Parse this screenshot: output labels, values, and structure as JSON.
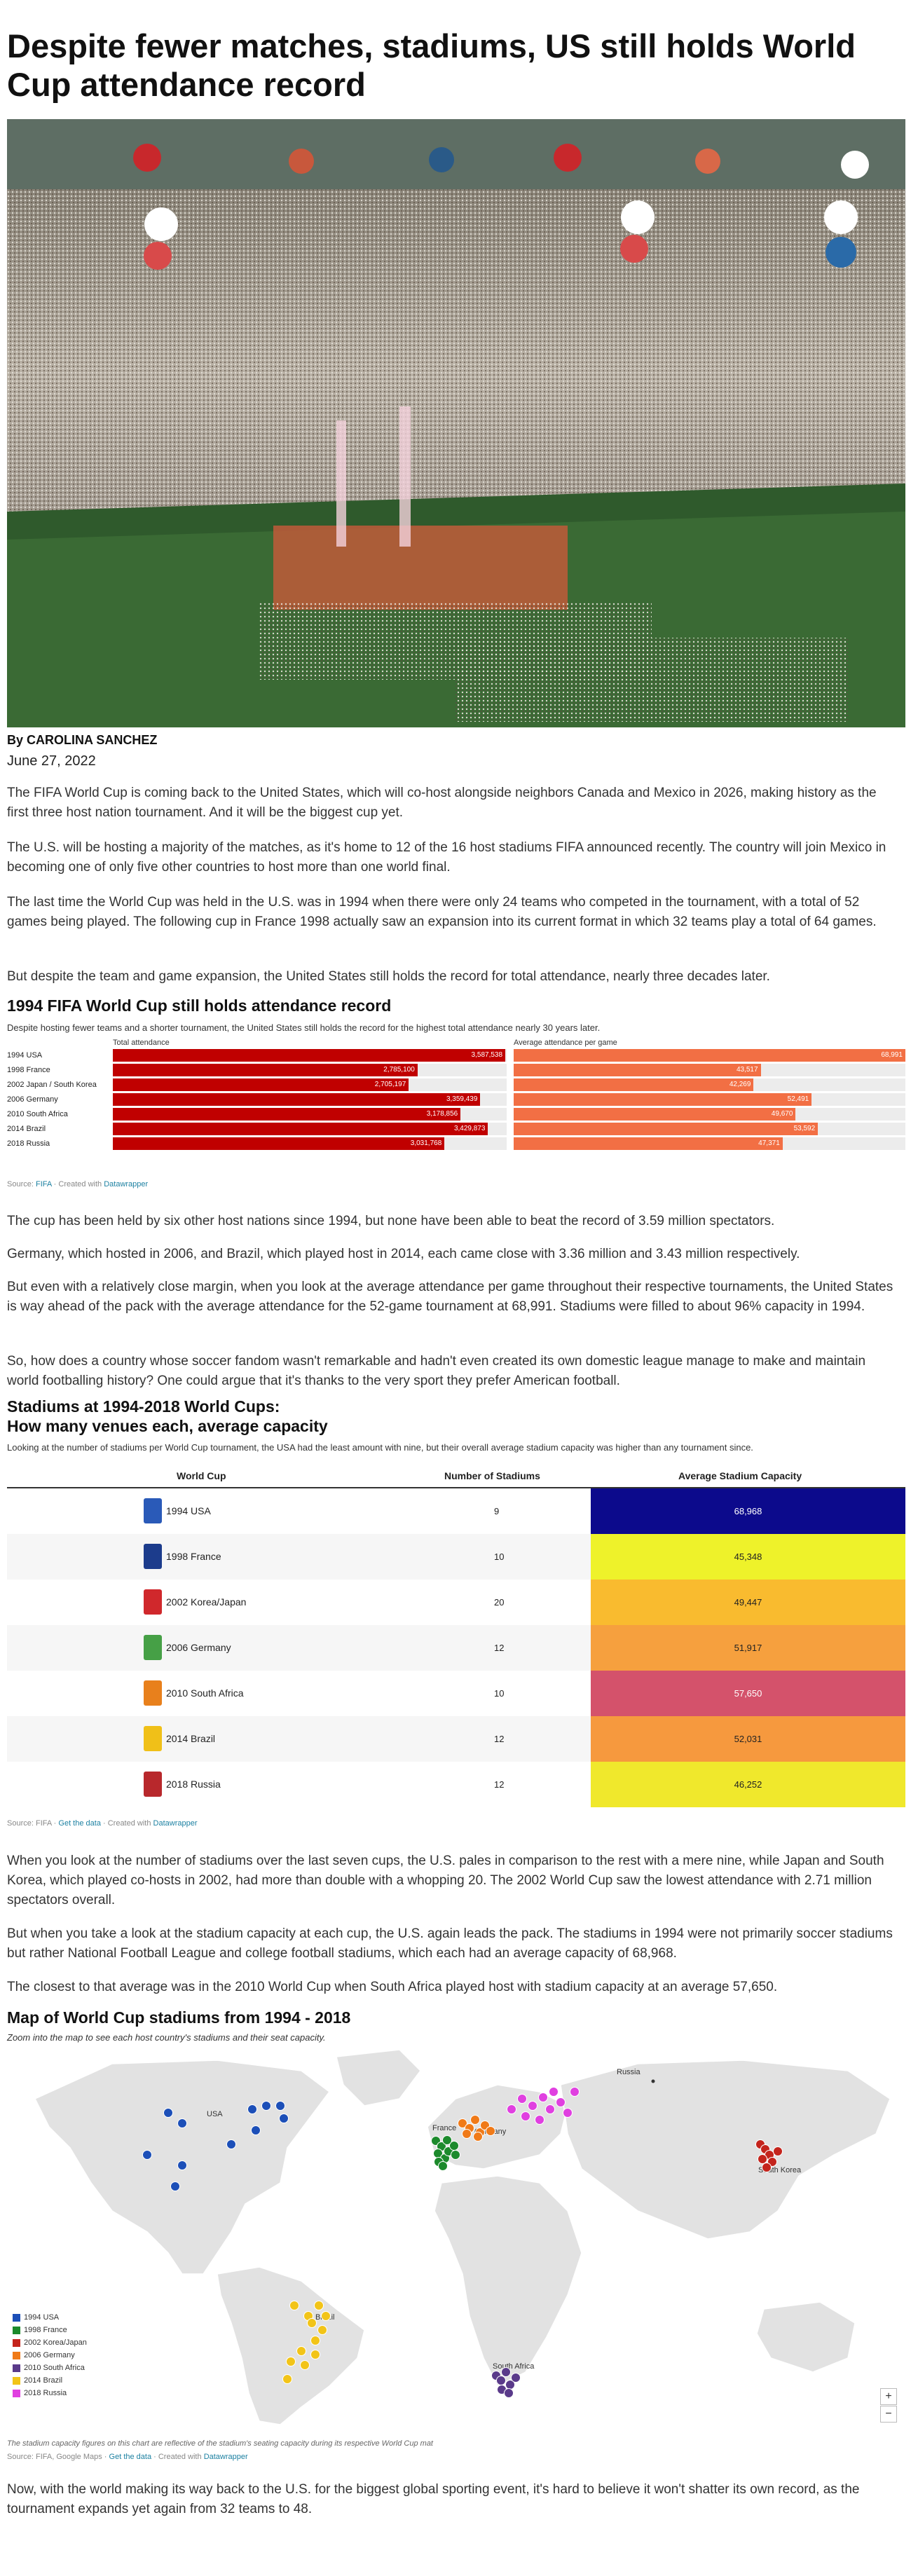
{
  "article": {
    "headline": "Despite fewer matches, stadiums, US still holds World Cup attendance record",
    "byline": "By CAROLINA SANCHEZ",
    "date": "June 27, 2022",
    "paragraphs": [
      "The FIFA World Cup is coming back to the United States, which will co-host alongside neighbors Canada and Mexico in 2026, making history as the first three host nation tournament. And it will be the biggest cup yet.",
      "The U.S. will be hosting a majority of the matches, as it's home to 12 of the 16 host stadiums FIFA announced recently. The country will join Mexico in becoming one of only five other countries to host more than one world final.",
      "The last time the World Cup was held in the U.S. was in 1994 when there were only 24 teams who competed in the tournament, with a total of 52 games being played. The following cup in France 1998 actually saw an expansion into its current format in which 32 teams play a total of 64 games.",
      "But despite the team and game expansion, the United States still holds the record for total attendance, nearly three decades later."
    ],
    "paragraphs2": [
      "The cup has been held by six other host nations since 1994, but none have been able to beat the record of 3.59 million spectators.",
      "Germany, which hosted in 2006, and Brazil, which played host in 2014, each came close with 3.36 million and 3.43 million respectively.",
      "But even with a relatively close margin, when you look at the average attendance per game throughout their respective tournaments, the United States is way ahead of the pack with the average attendance for the 52-game tournament at 68,991. Stadiums were filled to about 96% capacity in 1994.",
      "So, how does a country whose soccer fandom wasn't remarkable and hadn't even created its own domestic league manage to make and maintain world footballing history? One could argue that it's thanks to the very sport they prefer American football."
    ],
    "paragraphs3": [
      "When you look at the number of stadiums over the last seven cups, the U.S. pales in comparison to the rest with a mere nine, while Japan and South Korea, which played co-hosts in 2002, had more than double with a whopping 20. The 2002 World Cup saw the lowest attendance with 2.71 million spectators overall.",
      "But when you take a look at the stadium capacity at each cup, the U.S. again leads the pack. The stadiums in 1994 were not primarily soccer stadiums but rather National Football League and college football stadiums, which each had an average capacity of 68,968.",
      "The closest to that average was in the 2010 World Cup when South Africa played host with stadium capacity at an average 57,650."
    ],
    "closing": "Now, with the world making its way back to the U.S. for the biggest global sporting event, it's hard to believe it won't shatter its own record, as the tournament expands yet again from 32 teams to 48."
  },
  "chart_data": [
    {
      "type": "bar",
      "title": "1994 FIFA World Cup still holds attendance record",
      "description": "Despite hosting fewer teams and a shorter tournament, the United States still holds the record for the highest total attendance nearly 30 years later.",
      "categories": [
        "1994 USA",
        "1998 France",
        "2002 Japan / South Korea",
        "2006 Germany",
        "2010 South Africa",
        "2014 Brazil",
        "2018 Russia"
      ],
      "series": [
        {
          "name": "Total attendance",
          "values": [
            3587538,
            2785100,
            2705197,
            3359439,
            3178856,
            3429873,
            3031768
          ],
          "labels": [
            "3,587,538",
            "2,785,100",
            "2,705,197",
            "3,359,439",
            "3,178,856",
            "3,429,873",
            "3,031,768"
          ],
          "max": 3600000,
          "color": "#c00000"
        },
        {
          "name": "Average attendance per game",
          "values": [
            68991,
            43517,
            42269,
            52491,
            49670,
            53592,
            47371
          ],
          "labels": [
            "68,991",
            "43,517",
            "42,269",
            "52,491",
            "49,670",
            "53,592",
            "47,371"
          ],
          "max": 69000,
          "color": "#f26f44"
        }
      ],
      "source_label": "Source:",
      "source_name": "FIFA",
      "credit_prefix": "Created with",
      "credit_name": "Datawrapper"
    },
    {
      "type": "table",
      "title": "Stadiums at 1994-2018 World Cups:",
      "subtitle": "How many venues each, average capacity",
      "description": "Looking at the number of stadiums per World Cup tournament, the USA had the least amount with nine, but their overall average stadium capacity was higher than any tournament since.",
      "columns": [
        "World Cup",
        "Number of Stadiums",
        "Average Stadium Capacity"
      ],
      "rows": [
        {
          "cup": "1994 USA",
          "stadiums": "9",
          "capacity": "68,968",
          "color": "#0c0a8c",
          "text_color": "#ffffff",
          "logo_color": "#2a5ab8"
        },
        {
          "cup": "1998 France",
          "stadiums": "10",
          "capacity": "45,348",
          "color": "#eef22a",
          "text_color": "#222222",
          "logo_color": "#1c3c8c"
        },
        {
          "cup": "2002 Korea/Japan",
          "stadiums": "20",
          "capacity": "49,447",
          "color": "#f9bb2f",
          "text_color": "#222222",
          "logo_color": "#d0282c"
        },
        {
          "cup": "2006 Germany",
          "stadiums": "12",
          "capacity": "51,917",
          "color": "#f6a03e",
          "text_color": "#222222",
          "logo_color": "#46a046"
        },
        {
          "cup": "2010 South Africa",
          "stadiums": "10",
          "capacity": "57,650",
          "color": "#d4526b",
          "text_color": "#ffffff",
          "logo_color": "#e8801c"
        },
        {
          "cup": "2014 Brazil",
          "stadiums": "12",
          "capacity": "52,031",
          "color": "#f6993e",
          "text_color": "#222222",
          "logo_color": "#f0c018"
        },
        {
          "cup": "2018 Russia",
          "stadiums": "12",
          "capacity": "46,252",
          "color": "#f0e82c",
          "text_color": "#222222",
          "logo_color": "#b8282c"
        }
      ],
      "source_label": "Source:",
      "source_name": "FIFA",
      "get_data": "Get the data",
      "credit_prefix": "Created with",
      "credit_name": "Datawrapper"
    },
    {
      "type": "scatter",
      "title": "Map of World Cup stadiums from 1994 - 2018",
      "description": "Zoom into the map to see each host country's stadiums and their seat capacity.",
      "place_labels": [
        "USA",
        "France",
        "Germany",
        "Russia",
        "Brazil",
        "South Africa",
        "South Korea"
      ],
      "legend": [
        {
          "name": "1994 USA",
          "color": "#1c4fb8"
        },
        {
          "name": "1998 France",
          "color": "#1c8a2c"
        },
        {
          "name": "2002 Korea/Japan",
          "color": "#c4241c"
        },
        {
          "name": "2006 Germany",
          "color": "#f07a18"
        },
        {
          "name": "2010 South Africa",
          "color": "#5a3a8a"
        },
        {
          "name": "2014 Brazil",
          "color": "#f2c418"
        },
        {
          "name": "2018 Russia",
          "color": "#e040e0"
        }
      ],
      "zoom_in": "+",
      "zoom_out": "−",
      "note": "The stadium capacity figures on this chart are reflective of the stadium's seating capacity during its respective World Cup mat",
      "source_label": "Source:",
      "source_name": "FIFA, Google Maps",
      "get_data": "Get the data",
      "credit_prefix": "Created with",
      "credit_name": "Datawrapper"
    }
  ]
}
